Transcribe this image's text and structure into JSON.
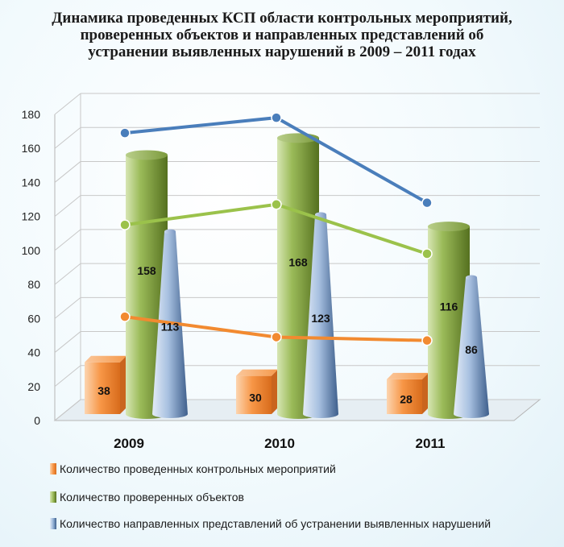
{
  "chart_data": {
    "type": "bar",
    "title": "Динамика проведенных КСП области контрольных мероприятий,  проверенных объектов и направленных представлений об устранении выявленных нарушений в 2009 – 2011 годах",
    "categories": [
      "2009",
      "2010",
      "2011"
    ],
    "series": [
      {
        "name": "Количество проведенных контрольных мероприятий",
        "values": [
          38,
          30,
          28
        ],
        "color": "#f79646",
        "shape": "box"
      },
      {
        "name": "Количество проверенных объектов",
        "values": [
          158,
          168,
          116
        ],
        "color": "#9bbb59",
        "shape": "cylinder"
      },
      {
        "name": "Количество направленных представлений об устранении выявленных нарушений",
        "values": [
          113,
          123,
          86
        ],
        "color": "#95b3d7",
        "shape": "cone"
      }
    ],
    "lines": [
      {
        "color": "#f28a30",
        "values": [
          62,
          50,
          48
        ]
      },
      {
        "color": "#9bc24b",
        "values": [
          116,
          128,
          99
        ]
      },
      {
        "color": "#4a7ebb",
        "values": [
          170,
          179,
          129
        ]
      }
    ],
    "ylim": [
      0,
      180
    ],
    "yticks": [
      0,
      20,
      40,
      60,
      80,
      100,
      120,
      140,
      160,
      180
    ],
    "grid": true,
    "legend_position": "bottom"
  }
}
